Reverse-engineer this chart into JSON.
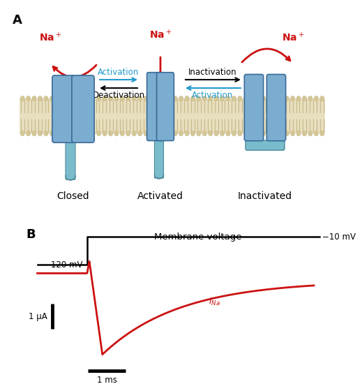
{
  "panel_A_label": "A",
  "panel_B_label": "B",
  "background_color": "#ffffff",
  "membrane_color": "#e8dfc0",
  "membrane_line_color": "#c8b888",
  "channel_color_main": "#7aadcf",
  "channel_color_grad_top": "#aaccee",
  "channel_color_dark": "#3a6a99",
  "teal_color": "#7abccc",
  "teal_dark": "#4a8899",
  "red_color": "#cc1111",
  "blue_arrow_color": "#2299cc",
  "na_label_color": "#cc1111",
  "state_labels": [
    "Closed",
    "Activated",
    "Inactivated"
  ],
  "activation_label": "Activation",
  "deactivation_label": "Deactivation",
  "inactivation_label": "Inactivation",
  "activation2_label": "Activation",
  "voltage_label": "Membrane voltage",
  "mv_low": "−120 mV",
  "mv_high": "−10 mV",
  "scale_bar_label": "1 μA",
  "time_bar_label": "1 ms",
  "ina_label": "$I_{\\mathregular{Na}}$",
  "line_color_voltage": "#000000",
  "line_color_current": "#cc1111"
}
